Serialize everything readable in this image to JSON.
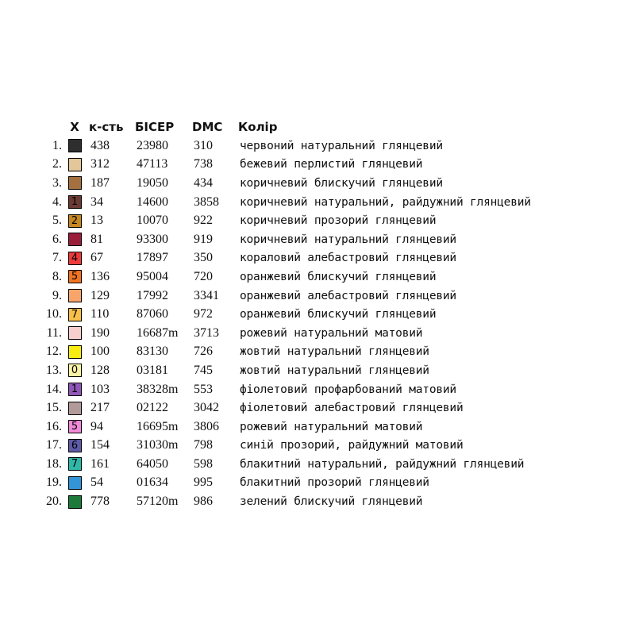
{
  "header": {
    "symbol": "X",
    "qty": "к-сть",
    "bead": "БІСЕР",
    "dmc": "DMC",
    "color": "Колір"
  },
  "rows": [
    {
      "num": "1.",
      "symbol": "",
      "swatch": "#2e2e2e",
      "symbol_color": "#ffffff",
      "qty": "438",
      "bead": "23980",
      "dmc": "310",
      "name": "червоний натуральний глянцевий"
    },
    {
      "num": "2.",
      "symbol": "",
      "swatch": "#e3c79a",
      "symbol_color": "#000000",
      "qty": "312",
      "bead": "47113",
      "dmc": "738",
      "name": "бежевий перлистий глянцевий"
    },
    {
      "num": "3.",
      "symbol": "",
      "swatch": "#a4703f",
      "symbol_color": "#000000",
      "qty": "187",
      "bead": "19050",
      "dmc": "434",
      "name": "коричневий блискучий глянцевий"
    },
    {
      "num": "4.",
      "symbol": "1",
      "swatch": "#6b3a32",
      "symbol_color": "#000000",
      "qty": "34",
      "bead": "14600",
      "dmc": "3858",
      "name": "коричневий натуральний, райдужний глянцевий"
    },
    {
      "num": "5.",
      "symbol": "2",
      "swatch": "#c68720",
      "symbol_color": "#000000",
      "qty": "13",
      "bead": "10070",
      "dmc": "922",
      "name": "коричневий прозорий глянцевий"
    },
    {
      "num": "6.",
      "symbol": "",
      "swatch": "#9a1e3a",
      "symbol_color": "#000000",
      "qty": "81",
      "bead": "93300",
      "dmc": "919",
      "name": "коричневий натуральний глянцевий"
    },
    {
      "num": "7.",
      "symbol": "4",
      "swatch": "#ee3a3a",
      "symbol_color": "#000000",
      "qty": "67",
      "bead": "17897",
      "dmc": "350",
      "name": "кораловий алебастровий  глянцевий"
    },
    {
      "num": "8.",
      "symbol": "5",
      "swatch": "#f27422",
      "symbol_color": "#000000",
      "qty": "136",
      "bead": "95004",
      "dmc": "720",
      "name": "оранжевий блискучий глянцевий"
    },
    {
      "num": "9.",
      "symbol": "",
      "swatch": "#f8a56c",
      "symbol_color": "#000000",
      "qty": "129",
      "bead": "17992",
      "dmc": "3341",
      "name": "оранжевий алебастровий глянцевий"
    },
    {
      "num": "10.",
      "symbol": "7",
      "swatch": "#f8c04a",
      "symbol_color": "#000000",
      "qty": "110",
      "bead": "87060",
      "dmc": "972",
      "name": "оранжевий блискучий глянцевий"
    },
    {
      "num": "11.",
      "symbol": "",
      "swatch": "#f8cfcf",
      "symbol_color": "#000000",
      "qty": "190",
      "bead": "16687m",
      "dmc": "3713",
      "name": "рожевий натуральний матовий"
    },
    {
      "num": "12.",
      "symbol": "",
      "swatch": "#f8ec10",
      "symbol_color": "#000000",
      "qty": "100",
      "bead": "83130",
      "dmc": "726",
      "name": "жовтий натуральний глянцевий"
    },
    {
      "num": "13.",
      "symbol": "0",
      "swatch": "#faf2a4",
      "symbol_color": "#000000",
      "qty": "128",
      "bead": "03181",
      "dmc": "745",
      "name": "жовтий натуральний глянцевий"
    },
    {
      "num": "14.",
      "symbol": "1",
      "swatch": "#8f58b8",
      "symbol_color": "#000000",
      "qty": "103",
      "bead": "38328m",
      "dmc": "553",
      "name": "фіолетовий профарбований матовий"
    },
    {
      "num": "15.",
      "symbol": "",
      "swatch": "#b39a9a",
      "symbol_color": "#000000",
      "qty": "217",
      "bead": "02122",
      "dmc": "3042",
      "name": "фіолетовий алебастровий глянцевий"
    },
    {
      "num": "16.",
      "symbol": "5",
      "swatch": "#f08ad8",
      "symbol_color": "#000000",
      "qty": "94",
      "bead": "16695m",
      "dmc": "3806",
      "name": "рожевий натуральний матовий"
    },
    {
      "num": "17.",
      "symbol": "6",
      "swatch": "#5f5aa8",
      "symbol_color": "#000000",
      "qty": "154",
      "bead": "31030m",
      "dmc": "798",
      "name": "синій прозорий, райдужний матовий"
    },
    {
      "num": "18.",
      "symbol": "7",
      "swatch": "#2fb8a8",
      "symbol_color": "#000000",
      "qty": "161",
      "bead": "64050",
      "dmc": "598",
      "name": "блакитний натуральний, райдужний глянцевий"
    },
    {
      "num": "19.",
      "symbol": "",
      "swatch": "#3494d8",
      "symbol_color": "#000000",
      "qty": "54",
      "bead": "01634",
      "dmc": "995",
      "name": "блакитний прозорий глянцевий"
    },
    {
      "num": "20.",
      "symbol": "",
      "swatch": "#1e7a3a",
      "symbol_color": "#000000",
      "qty": "778",
      "bead": "57120m",
      "dmc": "986",
      "name": "зелений блискучий глянцевий"
    }
  ]
}
